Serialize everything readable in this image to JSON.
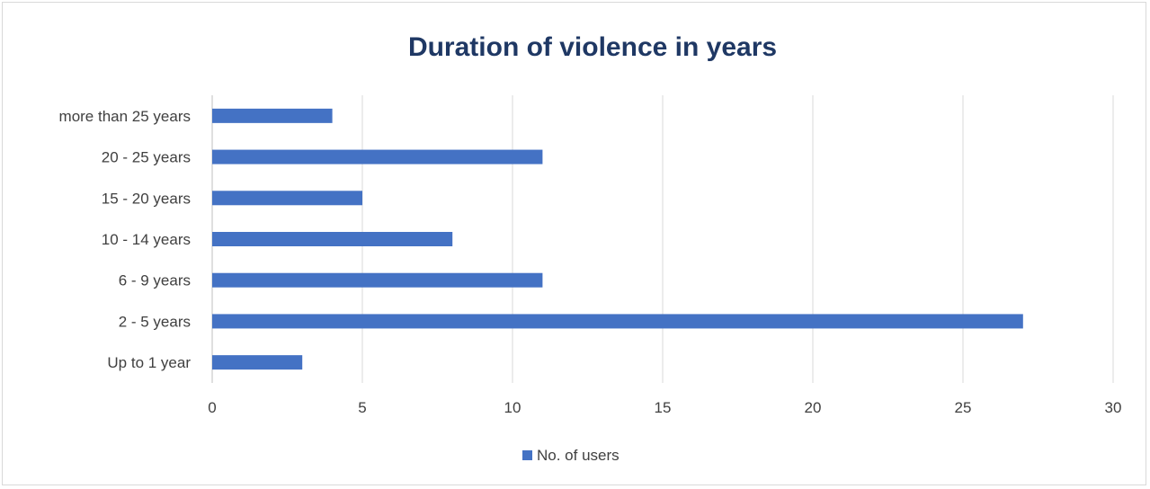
{
  "chart_data": {
    "type": "bar",
    "orientation": "horizontal",
    "title": "Duration of violence in years",
    "xlabel": "",
    "ylabel": "",
    "categories": [
      "Up to 1 year",
      "2 - 5 years",
      "6 - 9 years",
      "10 - 14 years",
      "15 - 20 years",
      "20 - 25 years",
      "more than 25 years"
    ],
    "series": [
      {
        "name": "No. of users",
        "values": [
          3,
          27,
          11,
          8,
          5,
          11,
          4
        ],
        "color": "#4472c4"
      }
    ],
    "xlim": [
      0,
      30
    ],
    "xticks": [
      0,
      5,
      10,
      15,
      20,
      25,
      30
    ],
    "xtick_labels": [
      "0",
      "5",
      "10",
      "15",
      "20",
      "25",
      "30"
    ],
    "grid": "vertical",
    "legend": "bottom-center"
  }
}
